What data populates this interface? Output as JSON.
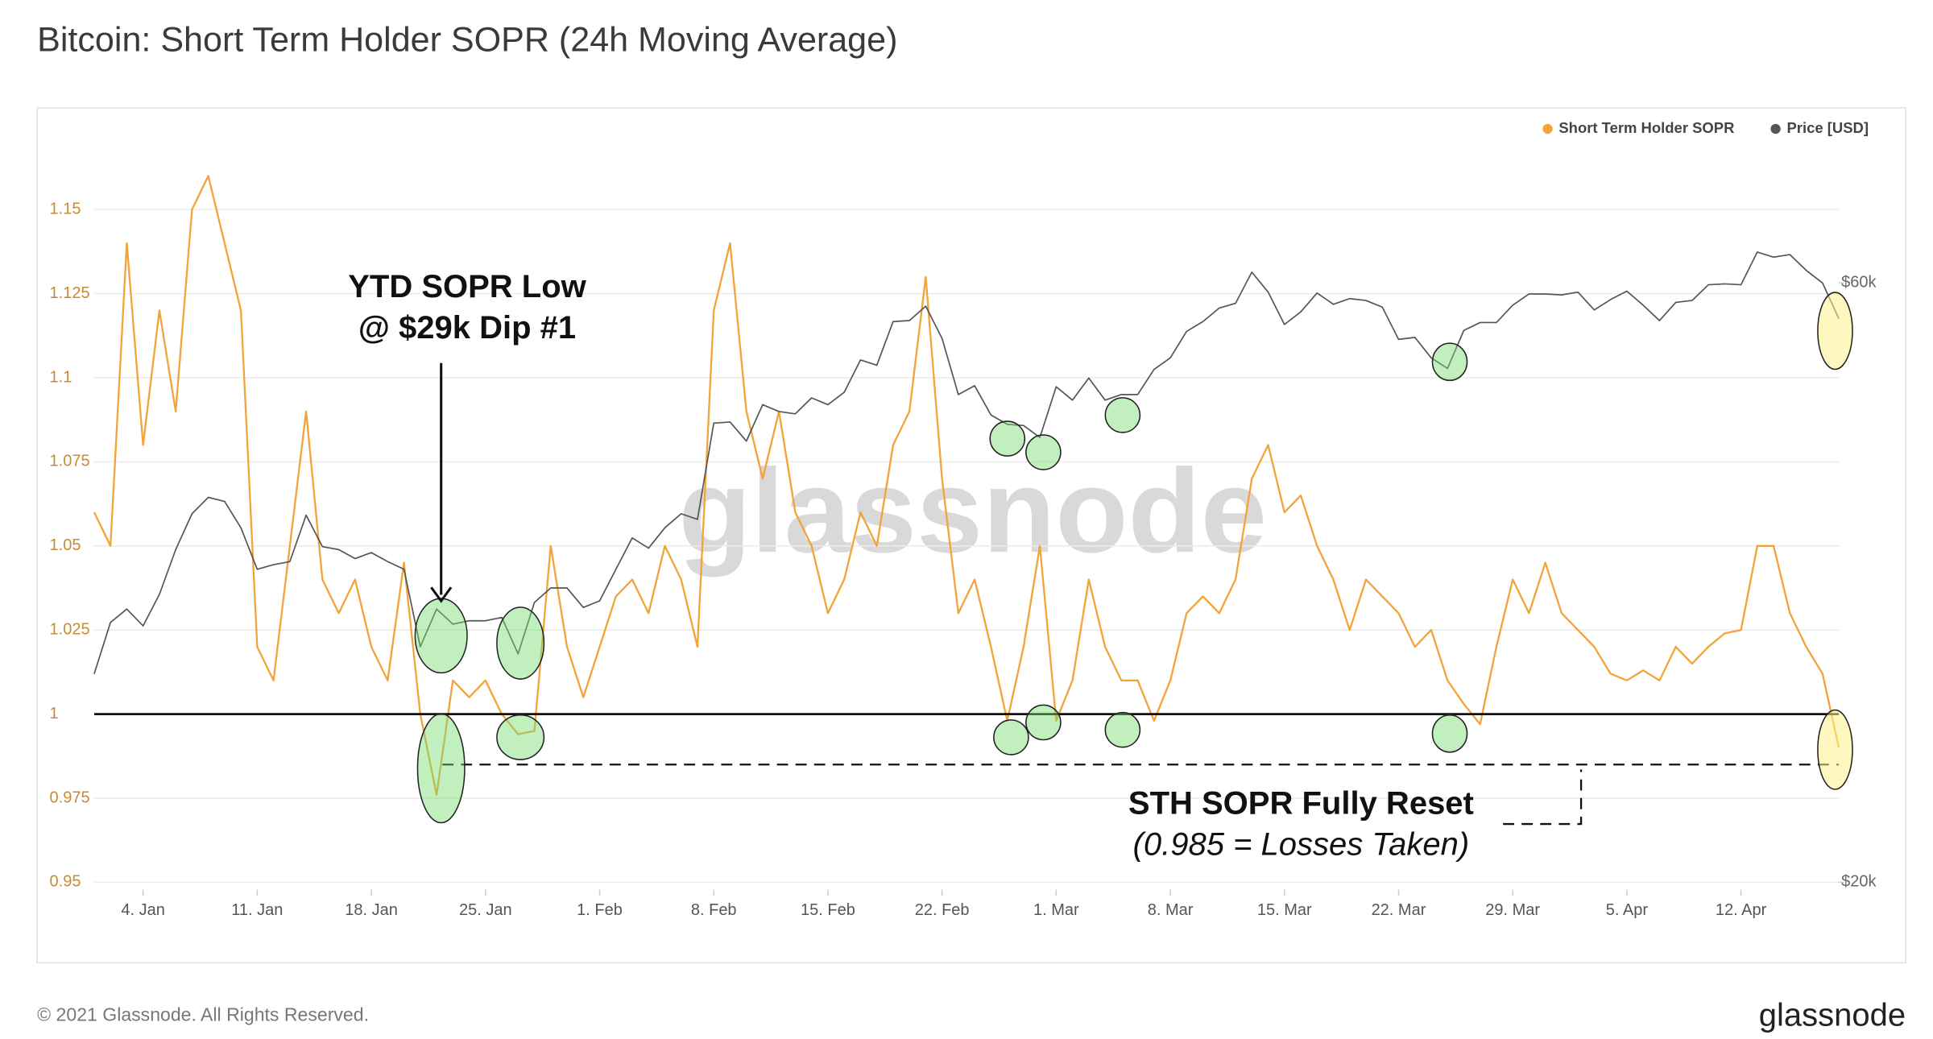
{
  "chart_data": {
    "type": "line",
    "title": "Bitcoin: Short Term Holder SOPR (24h Moving Average)",
    "x": [
      "1. Jan",
      "2. Jan",
      "3. Jan",
      "4. Jan",
      "5. Jan",
      "6. Jan",
      "7. Jan",
      "8. Jan",
      "9. Jan",
      "10. Jan",
      "11. Jan",
      "12. Jan",
      "13. Jan",
      "14. Jan",
      "15. Jan",
      "16. Jan",
      "17. Jan",
      "18. Jan",
      "19. Jan",
      "20. Jan",
      "21. Jan",
      "22. Jan",
      "23. Jan",
      "24. Jan",
      "25. Jan",
      "26. Jan",
      "27. Jan",
      "28. Jan",
      "29. Jan",
      "30. Jan",
      "31. Jan",
      "1. Feb",
      "2. Feb",
      "3. Feb",
      "4. Feb",
      "5. Feb",
      "6. Feb",
      "7. Feb",
      "8. Feb",
      "9. Feb",
      "10. Feb",
      "11. Feb",
      "12. Feb",
      "13. Feb",
      "14. Feb",
      "15. Feb",
      "16. Feb",
      "17. Feb",
      "18. Feb",
      "19. Feb",
      "20. Feb",
      "21. Feb",
      "22. Feb",
      "23. Feb",
      "24. Feb",
      "25. Feb",
      "26. Feb",
      "27. Feb",
      "28. Feb",
      "1. Mar",
      "2. Mar",
      "3. Mar",
      "4. Mar",
      "5. Mar",
      "6. Mar",
      "7. Mar",
      "8. Mar",
      "9. Mar",
      "10. Mar",
      "11. Mar",
      "12. Mar",
      "13. Mar",
      "14. Mar",
      "15. Mar",
      "16. Mar",
      "17. Mar",
      "18. Mar",
      "19. Mar",
      "20. Mar",
      "21. Mar",
      "22. Mar",
      "23. Mar",
      "24. Mar",
      "25. Mar",
      "26. Mar",
      "27. Mar",
      "28. Mar",
      "29. Mar",
      "30. Mar",
      "31. Mar",
      "1. Apr",
      "2. Apr",
      "3. Apr",
      "4. Apr",
      "5. Apr",
      "6. Apr",
      "7. Apr",
      "8. Apr",
      "9. Apr",
      "10. Apr",
      "11. Apr",
      "12. Apr",
      "13. Apr",
      "14. Apr",
      "15. Apr",
      "16. Apr",
      "17. Apr",
      "18. Apr"
    ],
    "xticks": [
      "4. Jan",
      "11. Jan",
      "18. Jan",
      "25. Jan",
      "1. Feb",
      "8. Feb",
      "15. Feb",
      "22. Feb",
      "1. Mar",
      "8. Mar",
      "15. Mar",
      "22. Mar",
      "29. Mar",
      "5. Apr",
      "12. Apr"
    ],
    "series": [
      {
        "name": "Short Term Holder SOPR",
        "color": "#f2a33a",
        "axis": "y",
        "values": [
          1.06,
          1.05,
          1.14,
          1.08,
          1.12,
          1.09,
          1.15,
          1.16,
          1.14,
          1.12,
          1.02,
          1.01,
          1.05,
          1.09,
          1.04,
          1.03,
          1.04,
          1.02,
          1.01,
          1.045,
          1.0,
          0.976,
          1.01,
          1.005,
          1.01,
          1.0,
          0.994,
          0.995,
          1.05,
          1.02,
          1.005,
          1.02,
          1.035,
          1.04,
          1.03,
          1.05,
          1.04,
          1.02,
          1.12,
          1.14,
          1.09,
          1.07,
          1.09,
          1.06,
          1.05,
          1.03,
          1.04,
          1.06,
          1.05,
          1.08,
          1.09,
          1.13,
          1.07,
          1.03,
          1.04,
          1.02,
          0.998,
          1.02,
          1.05,
          0.998,
          1.01,
          1.04,
          1.02,
          1.01,
          1.01,
          0.998,
          1.01,
          1.03,
          1.035,
          1.03,
          1.04,
          1.07,
          1.08,
          1.06,
          1.065,
          1.05,
          1.04,
          1.025,
          1.04,
          1.035,
          1.03,
          1.02,
          1.025,
          1.01,
          1.003,
          0.997,
          1.02,
          1.04,
          1.03,
          1.045,
          1.03,
          1.025,
          1.02,
          1.012,
          1.01,
          1.013,
          1.01,
          1.02,
          1.015,
          1.02,
          1.024,
          1.025,
          1.05,
          1.05,
          1.03,
          1.02,
          1.012,
          0.99
        ]
      },
      {
        "name": "Price [USD]",
        "color": "#555555",
        "axis": "y2",
        "values": [
          29300,
          32200,
          33000,
          32000,
          33900,
          36800,
          39300,
          40500,
          40200,
          38300,
          35500,
          35800,
          36000,
          39200,
          37000,
          36800,
          36200,
          36600,
          36000,
          35500,
          30800,
          33000,
          32100,
          32300,
          32300,
          32500,
          30400,
          33400,
          34300,
          34300,
          33100,
          33500,
          35500,
          37600,
          36900,
          38300,
          39300,
          38900,
          46400,
          46500,
          44900,
          48000,
          47400,
          47200,
          48600,
          48000,
          49100,
          52100,
          51600,
          55900,
          56000,
          57500,
          54200,
          48900,
          49700,
          47100,
          46300,
          46200,
          45200,
          49600,
          48400,
          50400,
          48400,
          48900,
          48900,
          51200,
          52300,
          54900,
          55900,
          57300,
          57800,
          61200,
          59000,
          55600,
          56900,
          58900,
          57700,
          58300,
          58100,
          57400,
          54100,
          54300,
          52300,
          51300,
          55000,
          55800,
          55800,
          57600,
          58800,
          58800,
          58700,
          59000,
          57100,
          58200,
          59100,
          57600,
          56000,
          57900,
          58100,
          59800,
          59900,
          59800,
          63500,
          62900,
          63200,
          61400,
          60000,
          56200
        ]
      }
    ],
    "ylim": [
      0.95,
      1.16
    ],
    "yticks": [
      0.95,
      0.975,
      1,
      1.025,
      1.05,
      1.075,
      1.1,
      1.125,
      1.15
    ],
    "y2lim": [
      20000,
      73000
    ],
    "y2ticks": [
      {
        "value": 20000,
        "label": "$20k"
      },
      {
        "value": 60000,
        "label": "$60k"
      }
    ],
    "y2_log": true,
    "grid": true,
    "legend": "top-right",
    "hlines": [
      {
        "value": 1,
        "style": "solid"
      },
      {
        "value": 0.985,
        "style": "dashed"
      }
    ],
    "annotations": [
      "YTD SOPR Low",
      "@ $29k Dip #1",
      "STH SOPR Fully Reset",
      "(0.985 = Losses Taken)"
    ],
    "watermark": "glassnode",
    "footer": "© 2021 Glassnode. All Rights Reserved.",
    "logo": "glassnode"
  }
}
